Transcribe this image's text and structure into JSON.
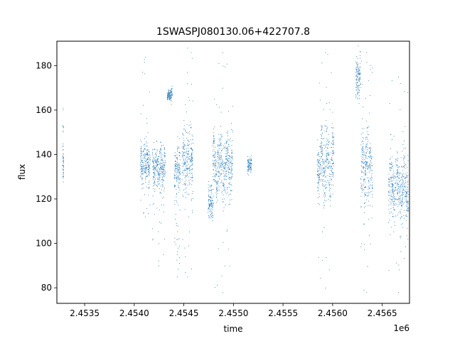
{
  "chart_data": {
    "type": "scatter",
    "title": "1SWASPJ080130.06+422707.8",
    "xlabel": "time",
    "ylabel": "flux",
    "x_offset_label": "1e6",
    "xlim": [
      2453220,
      2456775
    ],
    "ylim": [
      73,
      191
    ],
    "x_ticks": [
      2453500,
      2454000,
      2454500,
      2455000,
      2455500,
      2456000,
      2456500
    ],
    "x_tick_labels": [
      "2.4535",
      "2.4540",
      "2.4545",
      "2.4550",
      "2.4555",
      "2.4560",
      "2.4565"
    ],
    "y_ticks": [
      80,
      100,
      120,
      140,
      160,
      180
    ],
    "y_tick_labels": [
      "80",
      "100",
      "120",
      "140",
      "160",
      "180"
    ],
    "grid": false,
    "legend": "none",
    "point_color": "#1f77b4",
    "series": [
      {
        "clusters": [
          {
            "x_start": 2453275,
            "x_end": 2453285,
            "y_center": 136,
            "y_spread": 8,
            "outliers": [
              161
            ]
          },
          {
            "x_start": 2454060,
            "x_end": 2454160,
            "y_center": 136,
            "y_spread": 9,
            "outliers": [
              184,
              112
            ]
          },
          {
            "x_start": 2454180,
            "x_end": 2454310,
            "y_center": 134,
            "y_spread": 10,
            "outliers": [
              90,
              100
            ]
          },
          {
            "x_start": 2454330,
            "x_end": 2454380,
            "y_center": 167,
            "y_spread": 3,
            "outliers": []
          },
          {
            "x_start": 2454400,
            "x_end": 2454460,
            "y_center": 132,
            "y_spread": 11,
            "outliers": [
              85,
              95
            ]
          },
          {
            "x_start": 2454480,
            "x_end": 2454590,
            "y_center": 138,
            "y_spread": 16,
            "outliers": [
              188,
              85
            ]
          },
          {
            "x_start": 2454740,
            "x_end": 2454790,
            "y_center": 118,
            "y_spread": 8,
            "outliers": []
          },
          {
            "x_start": 2454790,
            "x_end": 2454990,
            "y_center": 135,
            "y_spread": 14,
            "outliers": [
              78,
              186,
              170
            ]
          },
          {
            "x_start": 2455140,
            "x_end": 2455180,
            "y_center": 135,
            "y_spread": 4,
            "outliers": []
          },
          {
            "x_start": 2455840,
            "x_end": 2456010,
            "y_center": 135,
            "y_spread": 17,
            "outliers": [
              186,
              80
            ]
          },
          {
            "x_start": 2456230,
            "x_end": 2456280,
            "y_center": 174,
            "y_spread": 8,
            "outliers": [
              189
            ]
          },
          {
            "x_start": 2456280,
            "x_end": 2456400,
            "y_center": 135,
            "y_spread": 18,
            "outliers": [
              78,
              186
            ]
          },
          {
            "x_start": 2456560,
            "x_end": 2456760,
            "y_center": 125,
            "y_spread": 15,
            "outliers": [
              78,
              175
            ]
          }
        ]
      }
    ]
  }
}
